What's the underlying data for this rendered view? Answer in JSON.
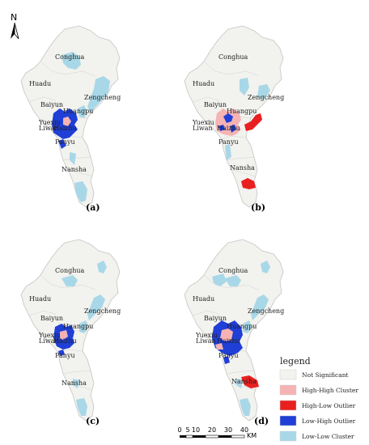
{
  "north_label": "N",
  "panels": [
    {
      "id": "a",
      "label": "(a)",
      "regions": {
        "conghua": "Conghua",
        "huadu": "Huadu",
        "baiyun": "Baiyun",
        "huangpu": "Huangpu",
        "zengcheng": "Zengcheng",
        "yuexiu": "Yuexiu",
        "liwan": "Liwan",
        "haizhu": "Haizhu",
        "panyu": "Panyu",
        "nansha": "Nansha"
      }
    },
    {
      "id": "b",
      "label": "(b)",
      "regions": {
        "conghua": "Conghua",
        "huadu": "Huadu",
        "baiyun": "Baiyun",
        "huangpu": "Huangpu",
        "zengcheng": "Zengcheng",
        "yuexiu": "Yuexiu",
        "liwan": "Liwan",
        "haizhu": "Haizhu",
        "panyu": "Panyu",
        "nansha": "Nansha"
      }
    },
    {
      "id": "c",
      "label": "(c)",
      "regions": {
        "conghua": "Conghua",
        "huadu": "Huadu",
        "baiyun": "Baiyun",
        "huangpu": "Huangpu",
        "zengcheng": "Zengcheng",
        "yuexiu": "Yuexiu",
        "liwan": "Liwan",
        "haizhu": "Haizhu",
        "panyu": "Panyu",
        "nansha": "Nansha"
      }
    },
    {
      "id": "d",
      "label": "(d)",
      "regions": {
        "conghua": "Conghua",
        "huadu": "Huadu",
        "baiyun": "Baiyun",
        "huangpu": "Huangpu",
        "zengcheng": "Zengcheng",
        "yuexiu": "Yuexiu",
        "liwan": "Liwan",
        "haizhu": "Haizhu",
        "panyu": "Panyu",
        "nansha": "Nansha"
      }
    }
  ],
  "legend": {
    "title": "legend",
    "items": [
      {
        "label": "Not Significant",
        "color": "#f2f2ee"
      },
      {
        "label": "High-High Cluster",
        "color": "#f5b3b3"
      },
      {
        "label": "High-Low Outlier",
        "color": "#e8201f"
      },
      {
        "label": "Low-High Outlier",
        "color": "#1f3fd6"
      },
      {
        "label": "Low-Low Cluster",
        "color": "#a8d8e8"
      }
    ]
  },
  "scale": {
    "ticks": [
      "0",
      "5",
      "10",
      "20",
      "30",
      "40"
    ],
    "unit": "KM"
  },
  "colors": {
    "base": "#f2f2ee",
    "border": "#c4c4c4",
    "hh": "#f5b3b3",
    "hl": "#e8201f",
    "lh": "#1f3fd6",
    "ll": "#a8d8e8"
  }
}
